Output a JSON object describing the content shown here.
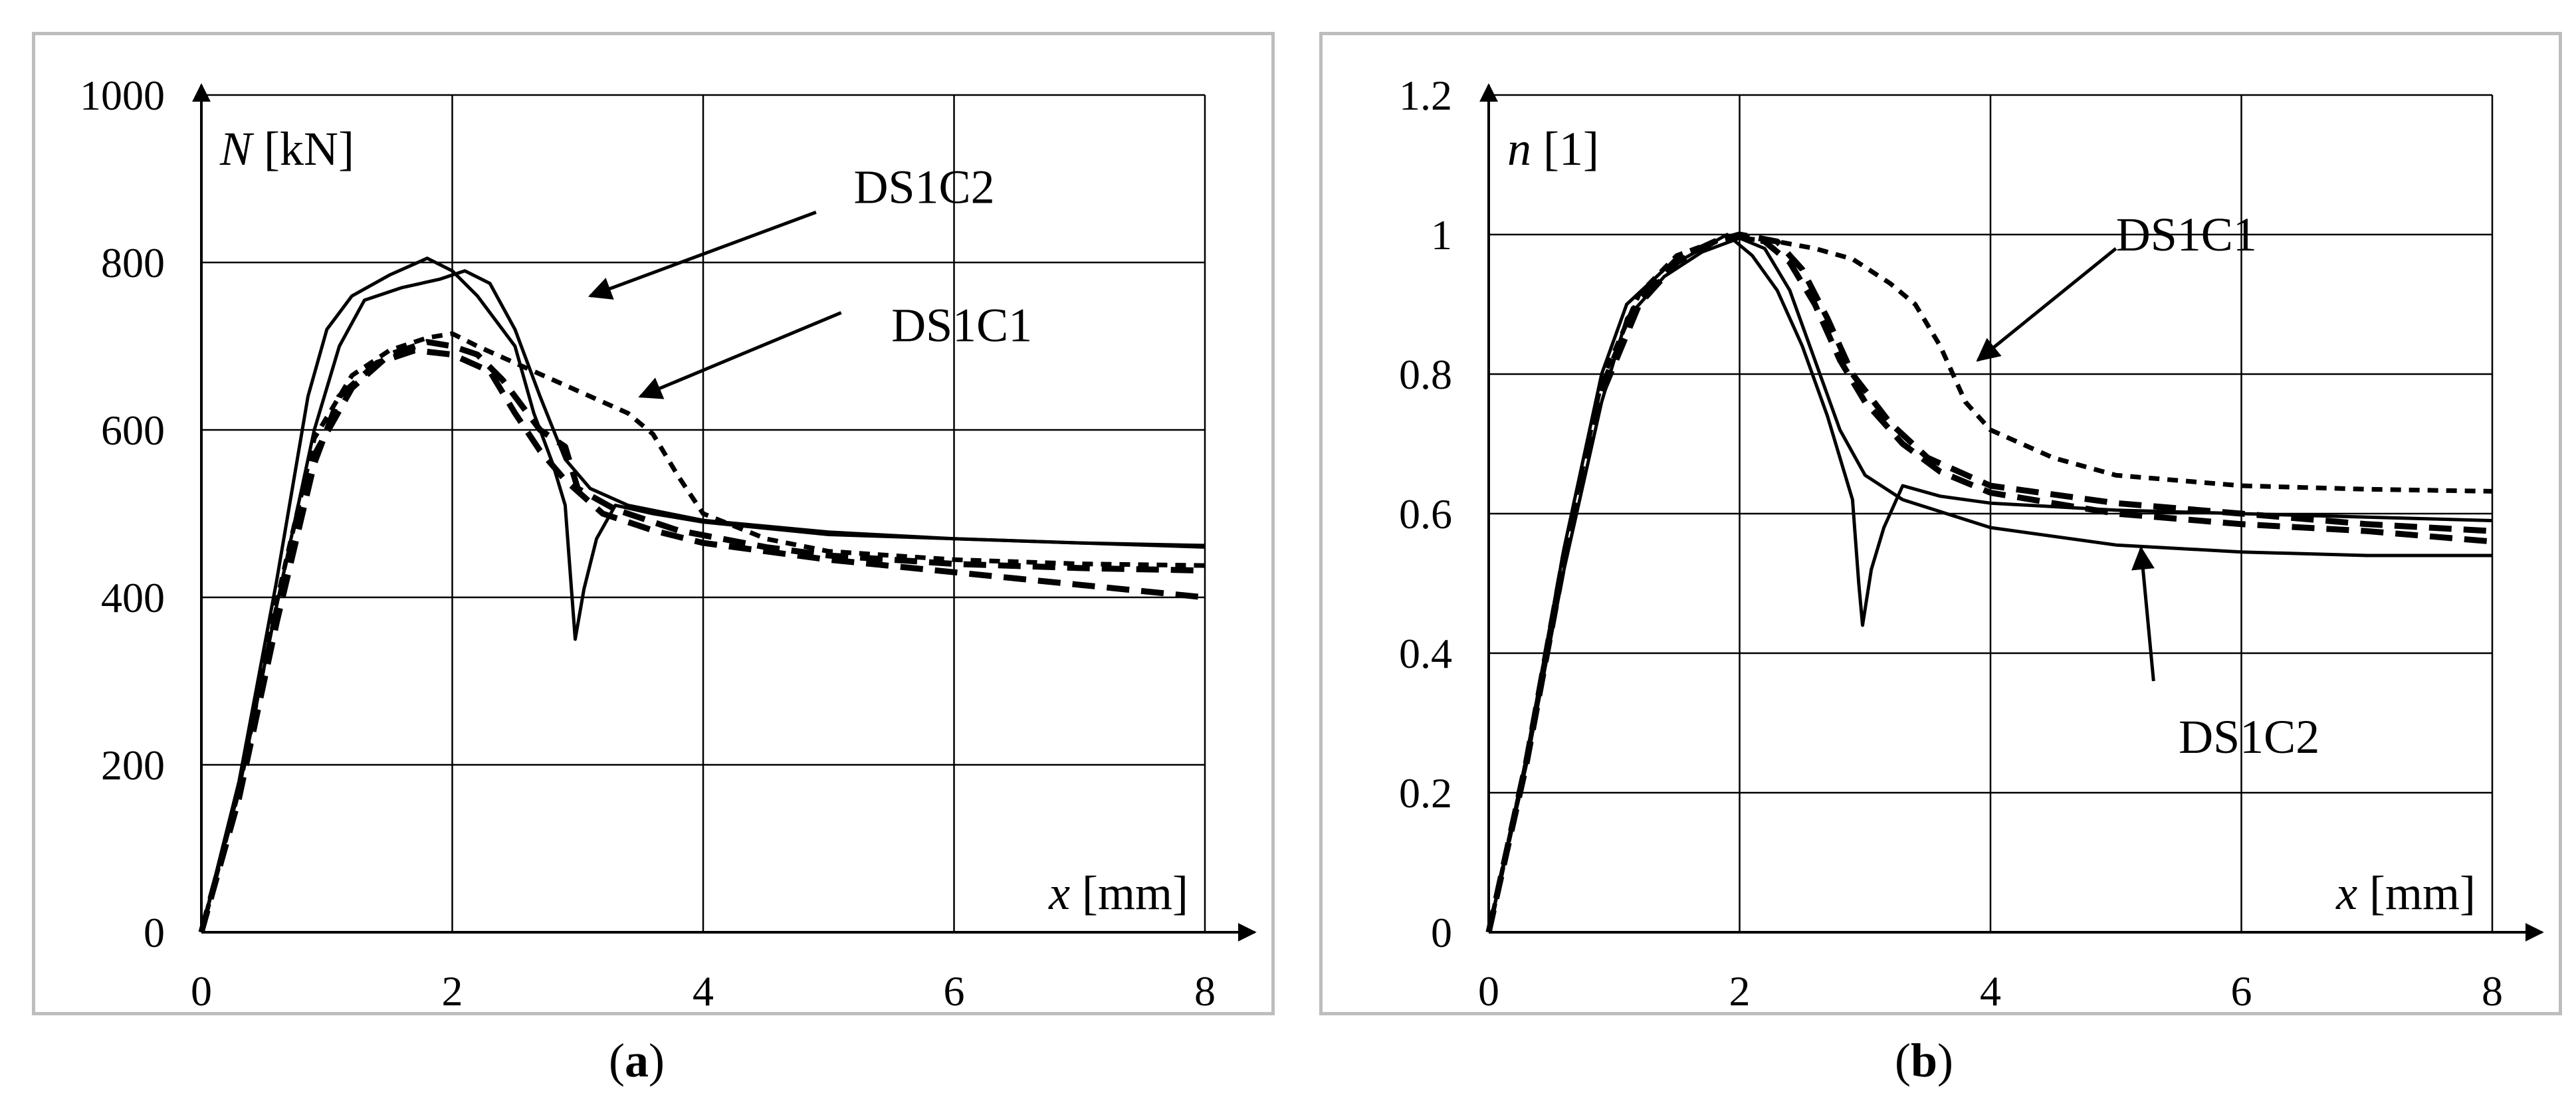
{
  "chart_data": [
    {
      "type": "line",
      "panel_label": "a",
      "ylabel_var": "N",
      "ylabel_unit": " [kN]",
      "xlabel_var": "x",
      "xlabel_unit": " [mm]",
      "xlim": [
        0,
        8
      ],
      "ylim": [
        0,
        1000
      ],
      "xticks": [
        "0",
        "2",
        "4",
        "6",
        "8"
      ],
      "yticks": [
        "0",
        "200",
        "400",
        "600",
        "800",
        "1000"
      ],
      "grid": true,
      "annotations": [
        {
          "text": "DS1C2",
          "series": "DS1C2",
          "arrow_from": [
            4.9,
            860
          ],
          "arrow_to": [
            3.1,
            760
          ],
          "label_at": [
            5.2,
            890
          ]
        },
        {
          "text": "DS1C1",
          "series": "DS1C1",
          "arrow_from": [
            5.1,
            740
          ],
          "arrow_to": [
            3.5,
            640
          ],
          "label_at": [
            5.5,
            725
          ]
        }
      ],
      "series": [
        {
          "name": "DS1C2",
          "style": "solid",
          "points": [
            [
              0,
              0
            ],
            [
              0.3,
              180
            ],
            [
              0.6,
              420
            ],
            [
              0.85,
              640
            ],
            [
              1.0,
              720
            ],
            [
              1.2,
              760
            ],
            [
              1.5,
              785
            ],
            [
              1.8,
              805
            ],
            [
              2.0,
              790
            ],
            [
              2.2,
              760
            ],
            [
              2.5,
              700
            ],
            [
              2.65,
              620
            ],
            [
              2.8,
              560
            ],
            [
              2.9,
              510
            ],
            [
              2.95,
              410
            ],
            [
              2.98,
              350
            ],
            [
              3.05,
              410
            ],
            [
              3.15,
              470
            ],
            [
              3.3,
              510
            ],
            [
              3.6,
              500
            ],
            [
              4.0,
              490
            ],
            [
              5.0,
              475
            ],
            [
              6.0,
              470
            ],
            [
              7.0,
              465
            ],
            [
              8.0,
              462
            ]
          ]
        },
        {
          "name": "DS1C2",
          "style": "solid",
          "points": [
            [
              0,
              0
            ],
            [
              0.3,
              170
            ],
            [
              0.6,
              390
            ],
            [
              0.9,
              600
            ],
            [
              1.1,
              700
            ],
            [
              1.3,
              755
            ],
            [
              1.6,
              770
            ],
            [
              1.9,
              780
            ],
            [
              2.0,
              785
            ],
            [
              2.1,
              790
            ],
            [
              2.3,
              775
            ],
            [
              2.5,
              720
            ],
            [
              2.7,
              640
            ],
            [
              2.9,
              565
            ],
            [
              3.1,
              530
            ],
            [
              3.4,
              510
            ],
            [
              4.0,
              492
            ],
            [
              5.0,
              478
            ],
            [
              6.0,
              470
            ],
            [
              8.0,
              460
            ]
          ]
        },
        {
          "name": "DS1C1",
          "style": "dashed",
          "points": [
            [
              0,
              0
            ],
            [
              0.3,
              160
            ],
            [
              0.6,
              370
            ],
            [
              0.9,
              560
            ],
            [
              1.1,
              640
            ],
            [
              1.4,
              680
            ],
            [
              1.7,
              695
            ],
            [
              2.0,
              690
            ],
            [
              2.3,
              670
            ],
            [
              2.5,
              620
            ],
            [
              2.7,
              575
            ],
            [
              2.9,
              540
            ],
            [
              3.2,
              500
            ],
            [
              3.6,
              480
            ],
            [
              4.0,
              465
            ],
            [
              5.0,
              445
            ],
            [
              6.0,
              430
            ],
            [
              7.0,
              415
            ],
            [
              8.0,
              400
            ]
          ]
        },
        {
          "name": "DS1C1",
          "style": "dashed",
          "points": [
            [
              0,
              0
            ],
            [
              0.3,
              165
            ],
            [
              0.6,
              385
            ],
            [
              0.9,
              570
            ],
            [
              1.2,
              650
            ],
            [
              1.5,
              690
            ],
            [
              1.8,
              705
            ],
            [
              2.0,
              700
            ],
            [
              2.2,
              690
            ],
            [
              2.4,
              660
            ],
            [
              2.7,
              600
            ],
            [
              2.9,
              580
            ],
            [
              3.0,
              530
            ],
            [
              3.3,
              505
            ],
            [
              3.8,
              480
            ],
            [
              4.5,
              460
            ],
            [
              5.0,
              450
            ],
            [
              6.0,
              440
            ],
            [
              7.0,
              435
            ],
            [
              8.0,
              432
            ]
          ]
        },
        {
          "name": "DS1C1",
          "style": "dotted",
          "points": [
            [
              0,
              0
            ],
            [
              0.3,
              170
            ],
            [
              0.6,
              395
            ],
            [
              0.9,
              590
            ],
            [
              1.2,
              665
            ],
            [
              1.5,
              695
            ],
            [
              1.8,
              710
            ],
            [
              2.0,
              715
            ],
            [
              2.2,
              700
            ],
            [
              2.5,
              680
            ],
            [
              2.8,
              660
            ],
            [
              3.1,
              640
            ],
            [
              3.4,
              620
            ],
            [
              3.6,
              595
            ],
            [
              3.8,
              545
            ],
            [
              4.0,
              500
            ],
            [
              4.5,
              470
            ],
            [
              5.0,
              455
            ],
            [
              6.0,
              445
            ],
            [
              7.0,
              440
            ],
            [
              8.0,
              438
            ]
          ]
        }
      ]
    },
    {
      "type": "line",
      "panel_label": "b",
      "ylabel_var": "n",
      "ylabel_unit": " [1]",
      "xlabel_var": "x",
      "xlabel_unit": " [mm]",
      "xlim": [
        0,
        8
      ],
      "ylim": [
        0,
        1.2
      ],
      "xticks": [
        "0",
        "2",
        "4",
        "6",
        "8"
      ],
      "yticks": [
        "0",
        "0.2",
        "0.4",
        "0.6",
        "0.8",
        "1",
        "1.2"
      ],
      "grid": true,
      "annotations": [
        {
          "text": "DS1C1",
          "series": "DS1C1",
          "arrow_from": [
            5.0,
            0.98
          ],
          "arrow_to": [
            3.9,
            0.82
          ],
          "label_at": [
            5.0,
            1.0
          ]
        },
        {
          "text": "DS1C2",
          "series": "DS1C2",
          "arrow_from": [
            5.3,
            0.36
          ],
          "arrow_to": [
            5.2,
            0.55
          ],
          "label_at": [
            5.5,
            0.28
          ]
        }
      ],
      "series": [
        {
          "name": "DS1C2",
          "style": "solid",
          "points": [
            [
              0,
              0
            ],
            [
              0.3,
              0.25
            ],
            [
              0.6,
              0.55
            ],
            [
              0.9,
              0.8
            ],
            [
              1.1,
              0.9
            ],
            [
              1.4,
              0.95
            ],
            [
              1.7,
              0.98
            ],
            [
              1.9,
              1.0
            ],
            [
              2.1,
              0.97
            ],
            [
              2.3,
              0.92
            ],
            [
              2.5,
              0.84
            ],
            [
              2.7,
              0.74
            ],
            [
              2.9,
              0.62
            ],
            [
              2.95,
              0.5
            ],
            [
              2.98,
              0.44
            ],
            [
              3.05,
              0.52
            ],
            [
              3.15,
              0.58
            ],
            [
              3.3,
              0.64
            ],
            [
              3.6,
              0.625
            ],
            [
              4.0,
              0.615
            ],
            [
              5.0,
              0.605
            ],
            [
              6.0,
              0.6
            ],
            [
              7.0,
              0.595
            ],
            [
              8.0,
              0.59
            ]
          ]
        },
        {
          "name": "DS1C2",
          "style": "solid",
          "points": [
            [
              0,
              0
            ],
            [
              0.3,
              0.24
            ],
            [
              0.6,
              0.52
            ],
            [
              0.9,
              0.76
            ],
            [
              1.1,
              0.88
            ],
            [
              1.4,
              0.94
            ],
            [
              1.7,
              0.975
            ],
            [
              2.0,
              0.995
            ],
            [
              2.2,
              0.98
            ],
            [
              2.4,
              0.92
            ],
            [
              2.6,
              0.82
            ],
            [
              2.8,
              0.72
            ],
            [
              3.0,
              0.655
            ],
            [
              3.3,
              0.62
            ],
            [
              4.0,
              0.58
            ],
            [
              5.0,
              0.555
            ],
            [
              6.0,
              0.545
            ],
            [
              7.0,
              0.54
            ],
            [
              8.0,
              0.54
            ]
          ]
        },
        {
          "name": "DS1C1",
          "style": "dashed",
          "points": [
            [
              0,
              0
            ],
            [
              0.3,
              0.24
            ],
            [
              0.6,
              0.53
            ],
            [
              0.9,
              0.77
            ],
            [
              1.2,
              0.9
            ],
            [
              1.5,
              0.96
            ],
            [
              1.8,
              0.99
            ],
            [
              2.0,
              1.0
            ],
            [
              2.2,
              0.99
            ],
            [
              2.4,
              0.96
            ],
            [
              2.6,
              0.9
            ],
            [
              2.8,
              0.82
            ],
            [
              3.0,
              0.76
            ],
            [
              3.3,
              0.7
            ],
            [
              3.6,
              0.66
            ],
            [
              4.0,
              0.63
            ],
            [
              5.0,
              0.6
            ],
            [
              6.0,
              0.585
            ],
            [
              7.0,
              0.575
            ],
            [
              8.0,
              0.56
            ]
          ]
        },
        {
          "name": "DS1C1",
          "style": "dashed",
          "points": [
            [
              0,
              0
            ],
            [
              0.3,
              0.245
            ],
            [
              0.6,
              0.54
            ],
            [
              0.9,
              0.78
            ],
            [
              1.2,
              0.91
            ],
            [
              1.5,
              0.965
            ],
            [
              1.8,
              0.99
            ],
            [
              2.0,
              1.0
            ],
            [
              2.3,
              0.99
            ],
            [
              2.5,
              0.95
            ],
            [
              2.7,
              0.88
            ],
            [
              2.9,
              0.8
            ],
            [
              3.2,
              0.73
            ],
            [
              3.5,
              0.68
            ],
            [
              4.0,
              0.64
            ],
            [
              5.0,
              0.615
            ],
            [
              6.0,
              0.6
            ],
            [
              7.0,
              0.585
            ],
            [
              8.0,
              0.575
            ]
          ]
        },
        {
          "name": "DS1C1",
          "style": "dotted",
          "points": [
            [
              0,
              0
            ],
            [
              0.3,
              0.245
            ],
            [
              0.6,
              0.545
            ],
            [
              0.9,
              0.79
            ],
            [
              1.2,
              0.915
            ],
            [
              1.5,
              0.97
            ],
            [
              1.8,
              0.99
            ],
            [
              2.0,
              0.995
            ],
            [
              2.3,
              0.99
            ],
            [
              2.6,
              0.98
            ],
            [
              2.9,
              0.965
            ],
            [
              3.2,
              0.93
            ],
            [
              3.4,
              0.9
            ],
            [
              3.6,
              0.84
            ],
            [
              3.8,
              0.76
            ],
            [
              4.0,
              0.72
            ],
            [
              4.5,
              0.68
            ],
            [
              5.0,
              0.655
            ],
            [
              6.0,
              0.64
            ],
            [
              7.0,
              0.635
            ],
            [
              8.0,
              0.632
            ]
          ]
        }
      ]
    }
  ],
  "captions": {
    "a": {
      "open": "(",
      "letter": "a",
      "close": ")"
    },
    "b": {
      "open": "(",
      "letter": "b",
      "close": ")"
    }
  }
}
